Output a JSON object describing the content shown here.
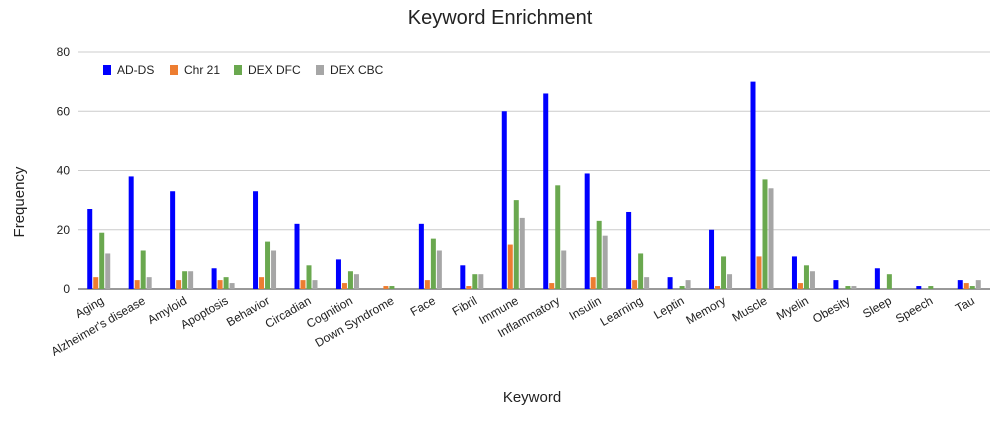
{
  "chart_data": {
    "type": "bar",
    "title": "Keyword Enrichment",
    "xlabel": "Keyword",
    "ylabel": "Frequency",
    "ylim": [
      0,
      80
    ],
    "yticks": [
      0,
      20,
      40,
      60,
      80
    ],
    "grid": true,
    "legend_position": "top-left",
    "categories": [
      "Aging",
      "Alzheimer's disease",
      "Amyloid",
      "Apoptosis",
      "Behavior",
      "Circadian",
      "Cognition",
      "Down Syndrome",
      "Face",
      "Fibril",
      "Immune",
      "Inflammatory",
      "Insulin",
      "Learning",
      "Leptin",
      "Memory",
      "Muscle",
      "Myelin",
      "Obesity",
      "Sleep",
      "Speech",
      "Tau"
    ],
    "series": [
      {
        "name": "AD-DS",
        "color": "#0000ff",
        "values": [
          27,
          38,
          33,
          7,
          33,
          22,
          10,
          0,
          22,
          8,
          60,
          66,
          39,
          26,
          4,
          20,
          70,
          11,
          3,
          7,
          1,
          3
        ]
      },
      {
        "name": "Chr 21",
        "color": "#ed7d31",
        "values": [
          4,
          3,
          3,
          3,
          4,
          3,
          2,
          1,
          3,
          1,
          15,
          2,
          4,
          3,
          0,
          1,
          11,
          2,
          0,
          0,
          0,
          2
        ]
      },
      {
        "name": "DEX DFC",
        "color": "#6aa84f",
        "values": [
          19,
          13,
          6,
          4,
          16,
          8,
          6,
          1,
          17,
          5,
          30,
          35,
          23,
          12,
          1,
          11,
          37,
          8,
          1,
          5,
          1,
          1
        ]
      },
      {
        "name": "DEX CBC",
        "color": "#a6a6a6",
        "values": [
          12,
          4,
          6,
          2,
          13,
          3,
          5,
          0,
          13,
          5,
          24,
          13,
          18,
          4,
          3,
          5,
          34,
          6,
          1,
          0,
          0,
          3
        ]
      }
    ]
  }
}
